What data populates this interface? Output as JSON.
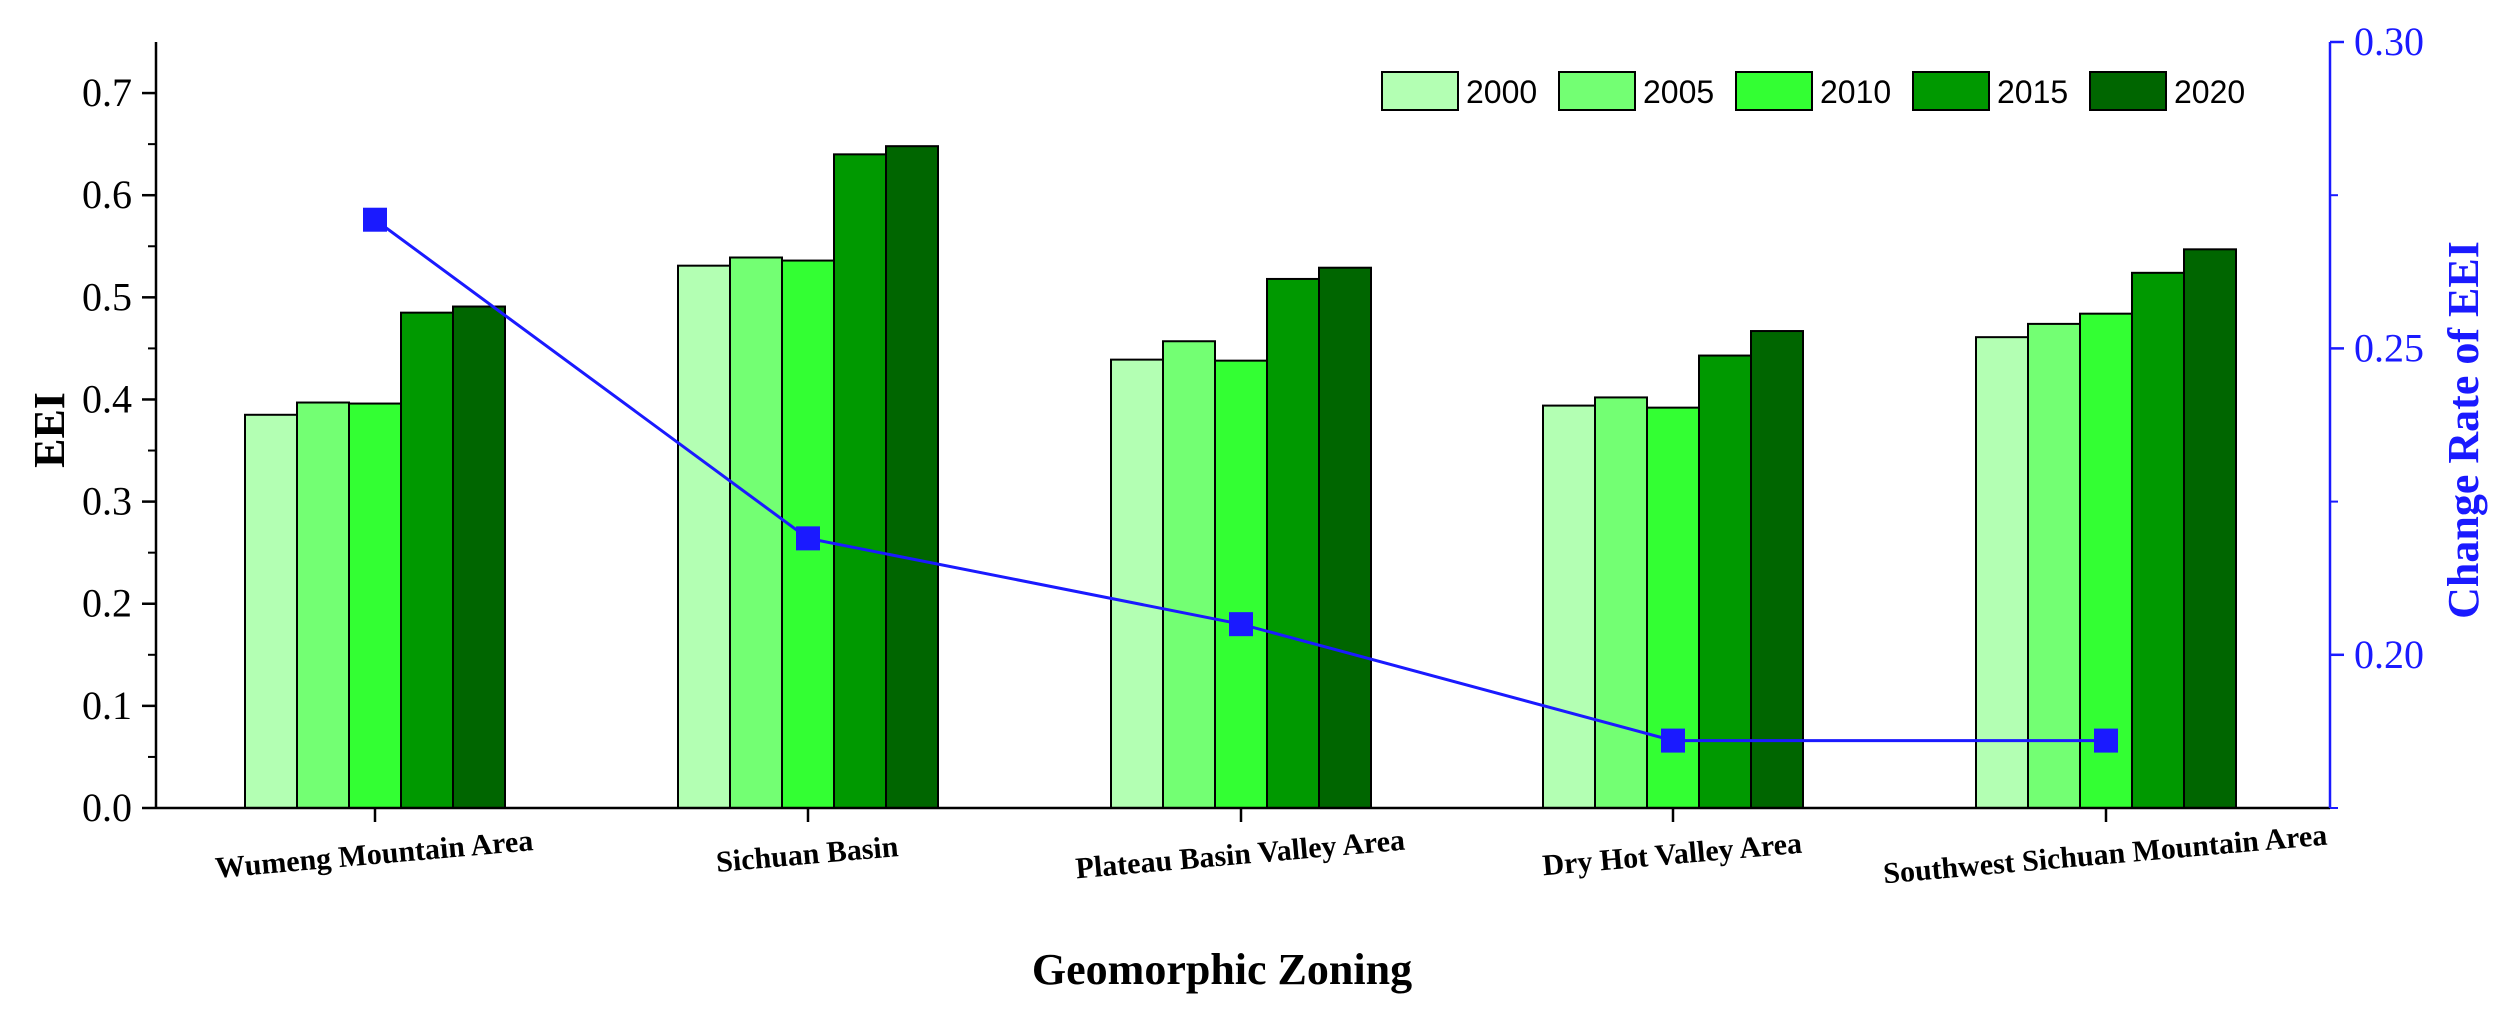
{
  "chart_data": {
    "type": "bar",
    "title": "",
    "xlabel": "Geomorphic Zoning",
    "ylabel": "EEI",
    "ylabel_right": "Change Rate of EEI",
    "ylim": [
      0,
      0.75
    ],
    "ylim_right": [
      0.175,
      0.3
    ],
    "yticks": [
      "0.0",
      "0.1",
      "0.2",
      "0.3",
      "0.4",
      "0.5",
      "0.6",
      "0.7"
    ],
    "yticks_right": [
      "0.20",
      "0.25",
      "0.30"
    ],
    "categories": [
      "Wumeng  Mountain Area",
      "Sichuan  Basin",
      "Plateau Basin Valley Area",
      "Dry Hot Valley Area",
      "Southwest Sichuan Mountain Area"
    ],
    "series": [
      {
        "name": "2000",
        "color": "#b3ffb3",
        "values": [
          0.385,
          0.531,
          0.439,
          0.394,
          0.461
        ]
      },
      {
        "name": "2005",
        "color": "#73ff73",
        "values": [
          0.397,
          0.539,
          0.457,
          0.402,
          0.474
        ]
      },
      {
        "name": "2010",
        "color": "#33ff33",
        "values": [
          0.396,
          0.536,
          0.438,
          0.392,
          0.484
        ]
      },
      {
        "name": "2015",
        "color": "#009900",
        "values": [
          0.485,
          0.64,
          0.518,
          0.443,
          0.524
        ]
      },
      {
        "name": "2020",
        "color": "#006600",
        "values": [
          0.491,
          0.648,
          0.529,
          0.467,
          0.547
        ]
      }
    ],
    "line_series": {
      "name": "Change Rate of EEI",
      "axis": "right",
      "color": "#1a1aff",
      "values": [
        0.271,
        0.219,
        0.205,
        0.186,
        0.186
      ]
    },
    "legend_position": "top-right",
    "grid": false
  }
}
